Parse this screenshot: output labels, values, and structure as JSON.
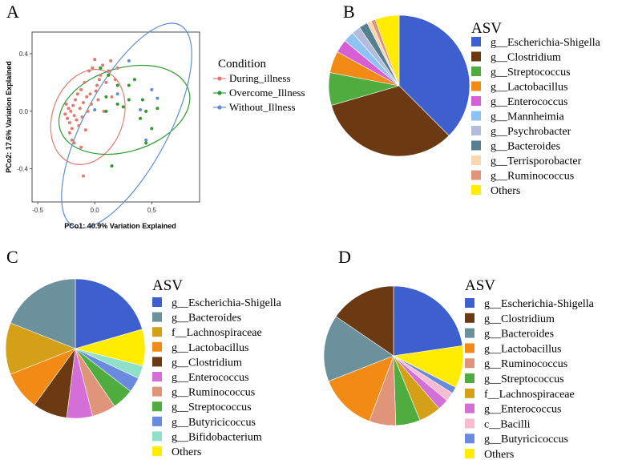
{
  "panels": {
    "a": "A",
    "b": "B",
    "c": "C",
    "d": "D"
  },
  "chart_data": [
    {
      "type": "scatter",
      "panel": "A",
      "xlabel": "PCo1: 40.9% Variation Explained",
      "ylabel": "PCo2: 17.6% Variation Explained",
      "xlim": [
        -0.55,
        0.92
      ],
      "ylim": [
        -0.63,
        0.55
      ],
      "xticks": [
        -0.5,
        0.0,
        0.5
      ],
      "xtick_labels": [
        "-0.5",
        "0.0",
        "0.5"
      ],
      "yticks": [
        0.4,
        0.0,
        -0.4
      ],
      "ytick_labels": [
        "0.4",
        "0.0",
        "-0.4"
      ],
      "legend_title": "Condition",
      "legend_position": "right",
      "series": [
        {
          "name": "During_illness",
          "color": "#e07b72",
          "points": [
            [
              -0.25,
              0.05
            ],
            [
              -0.24,
              -0.05
            ],
            [
              -0.23,
              0.02
            ],
            [
              -0.22,
              -0.08
            ],
            [
              -0.21,
              0.0
            ],
            [
              -0.2,
              -0.12
            ],
            [
              -0.19,
              0.04
            ],
            [
              -0.18,
              -0.03
            ],
            [
              -0.17,
              0.08
            ],
            [
              -0.16,
              -0.06
            ],
            [
              -0.15,
              0.12
            ],
            [
              -0.14,
              -0.1
            ],
            [
              -0.13,
              0.02
            ],
            [
              -0.12,
              0.15
            ],
            [
              -0.11,
              -0.04
            ],
            [
              -0.1,
              0.06
            ],
            [
              -0.09,
              0.2
            ],
            [
              -0.08,
              -0.13
            ],
            [
              -0.07,
              0.1
            ],
            [
              -0.06,
              0.0
            ],
            [
              -0.05,
              0.28
            ],
            [
              -0.04,
              0.12
            ],
            [
              -0.03,
              0.05
            ],
            [
              -0.02,
              0.3
            ],
            [
              0.0,
              0.36
            ],
            [
              0.02,
              0.18
            ],
            [
              0.03,
              0.08
            ],
            [
              0.05,
              0.25
            ],
            [
              0.07,
              0.32
            ],
            [
              0.08,
              0.0
            ],
            [
              0.1,
              0.2
            ],
            [
              0.12,
              0.28
            ],
            [
              0.14,
              0.35
            ],
            [
              0.15,
              0.1
            ],
            [
              0.18,
              0.22
            ],
            [
              0.2,
              0.3
            ],
            [
              -0.2,
              -0.2
            ],
            [
              -0.18,
              -0.22
            ],
            [
              -0.1,
              -0.45
            ],
            [
              -0.12,
              -0.25
            ],
            [
              -0.22,
              -0.15
            ],
            [
              -0.26,
              -0.02
            ],
            [
              0.04,
              0.22
            ],
            [
              0.01,
              0.14
            ]
          ]
        },
        {
          "name": "Overcome_Illness",
          "color": "#2e9a2e",
          "points": [
            [
              0.05,
              0.3
            ],
            [
              0.1,
              0.1
            ],
            [
              0.12,
              0.25
            ],
            [
              0.2,
              0.05
            ],
            [
              0.25,
              0.03
            ],
            [
              0.3,
              0.18
            ],
            [
              0.35,
              0.22
            ],
            [
              0.4,
              -0.05
            ],
            [
              0.42,
              0.08
            ],
            [
              0.45,
              0.0
            ],
            [
              0.5,
              -0.12
            ],
            [
              0.55,
              0.02
            ],
            [
              0.3,
              0.08
            ],
            [
              0.15,
              -0.38
            ],
            [
              0.2,
              0.18
            ],
            [
              0.45,
              -0.22
            ],
            [
              0.1,
              0.0
            ]
          ]
        },
        {
          "name": "Without_Illness",
          "color": "#5b8fd6",
          "points": [
            [
              0.0,
              0.01
            ],
            [
              0.2,
              0.12
            ],
            [
              0.3,
              0.35
            ],
            [
              0.4,
              0.01
            ],
            [
              0.45,
              -0.2
            ],
            [
              0.5,
              0.15
            ],
            [
              0.55,
              0.09
            ]
          ]
        }
      ],
      "ellipses": [
        {
          "series": "During_illness",
          "cx": -0.06,
          "cy": -0.04,
          "rx": 0.31,
          "ry": 0.34,
          "angle": 20
        },
        {
          "series": "Overcome_Illness",
          "cx": 0.26,
          "cy": 0.01,
          "rx": 0.59,
          "ry": 0.29,
          "angle": -17
        },
        {
          "series": "Without_Illness",
          "cx": 0.28,
          "cy": -0.1,
          "rx": 0.37,
          "ry": 0.79,
          "angle": 28
        }
      ]
    },
    {
      "type": "pie",
      "panel": "B",
      "legend_title": "ASV",
      "legend_position": "right",
      "labels": [
        "g__Escherichia-Shigella",
        "g__Clostridium",
        "g__Streptococcus",
        "g__Lactobacillus",
        "g__Enterococcus",
        "g__Mannheimia",
        "g__Psychrobacter",
        "g__Bacteroides",
        "g__Terrisporobacter",
        "g__Ruminococcus",
        "Others"
      ],
      "values": [
        37.5,
        33.0,
        7.5,
        5.0,
        3.0,
        2.5,
        2.0,
        2.0,
        1.0,
        1.0,
        5.5
      ],
      "colors": [
        "#3e5fce",
        "#6b3a12",
        "#4fac3f",
        "#f28a16",
        "#d65fd6",
        "#8cc2f4",
        "#b4bcdc",
        "#56808f",
        "#f7d7b0",
        "#e0957a",
        "#ffec00"
      ]
    },
    {
      "type": "pie",
      "panel": "C",
      "legend_title": "ASV",
      "legend_position": "right",
      "labels": [
        "g__Escherichia-Shigella",
        "g__Bacteroides",
        "f__Lachnospiraceae",
        "g__Lactobacillus",
        "g__Clostridium",
        "g__Enterococcus",
        "g__Ruminococcus",
        "g__Streptococcus",
        "g__Butyricicoccus",
        "g__Bifidobacterium",
        "Others"
      ],
      "values": [
        20.5,
        19.0,
        12.0,
        9.0,
        8.0,
        6.0,
        5.5,
        5.0,
        3.5,
        3.0,
        8.5
      ],
      "order": [
        0,
        10,
        9,
        8,
        7,
        6,
        5,
        4,
        3,
        2,
        1
      ],
      "colors": [
        "#3e5fce",
        "#6a919c",
        "#d4a017",
        "#f28a16",
        "#6b3a12",
        "#d46fd8",
        "#e0957a",
        "#4fac3f",
        "#6a8ae0",
        "#8ee0c8",
        "#ffec00"
      ]
    },
    {
      "type": "pie",
      "panel": "D",
      "legend_title": "ASV",
      "legend_position": "right",
      "labels": [
        "g__Escherichia-Shigella",
        "g__Clostridium",
        "g__Bacteroides",
        "g__Lactobacillus",
        "g__Ruminococcus",
        "g__Streptococcus",
        "f__Lachnospiraceae",
        "g__Enterococcus",
        "c__Bacilli",
        "g__Butyricicoccus",
        "Others"
      ],
      "values": [
        22.0,
        15.0,
        15.0,
        13.0,
        6.0,
        5.5,
        5.0,
        2.5,
        2.0,
        1.5,
        9.5
      ],
      "order": [
        0,
        10,
        9,
        8,
        7,
        6,
        5,
        4,
        3,
        2,
        1
      ],
      "colors": [
        "#3e5fce",
        "#6b3a12",
        "#6a919c",
        "#f28a16",
        "#e0957a",
        "#4fac3f",
        "#d4a017",
        "#d46fd8",
        "#f7bcd0",
        "#6a8ae0",
        "#ffec00"
      ]
    }
  ]
}
